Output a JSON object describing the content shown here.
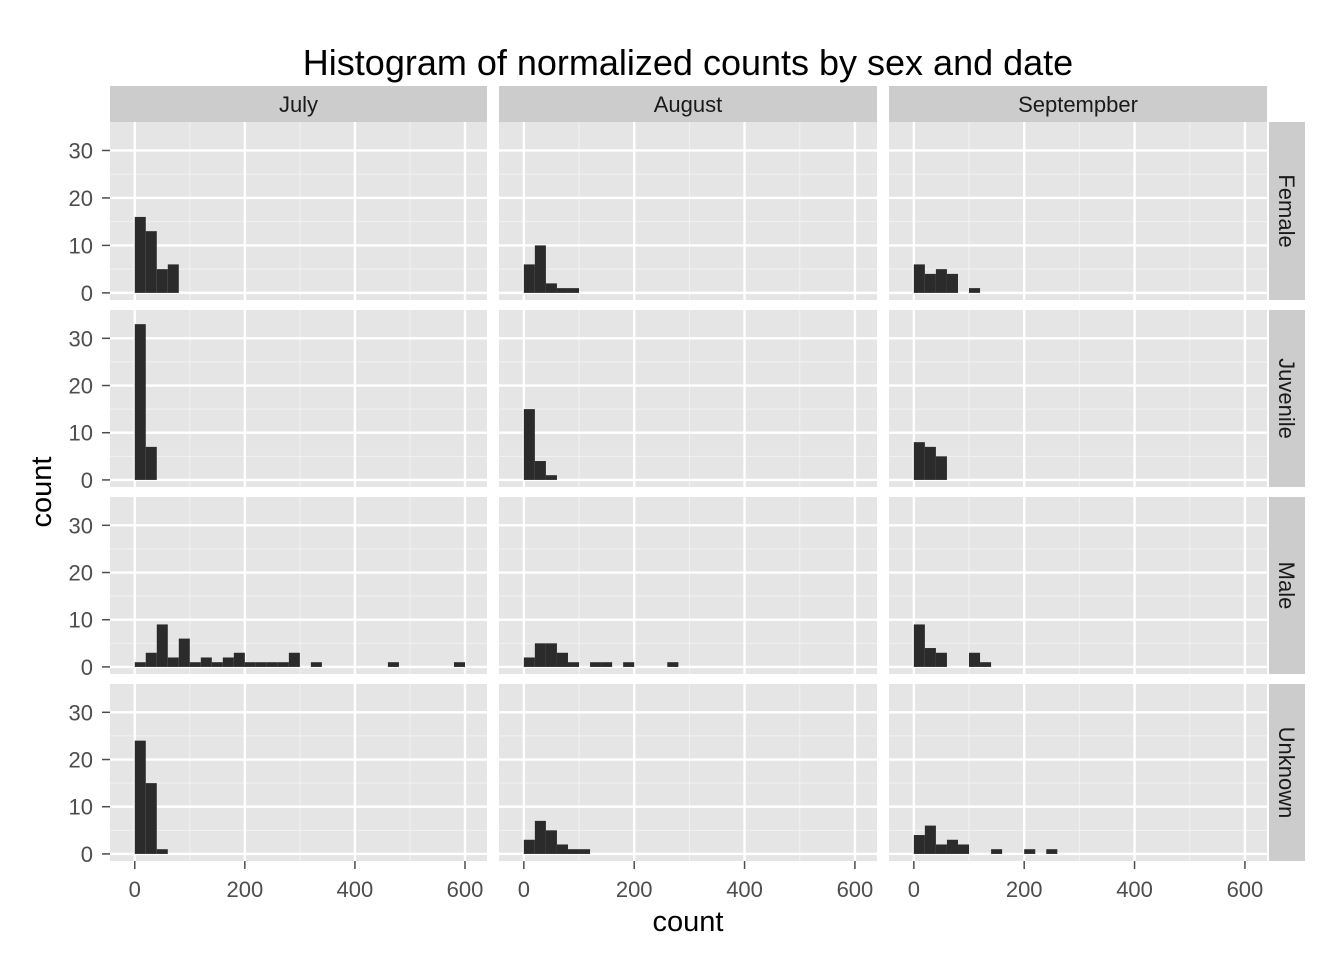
{
  "chart_data": {
    "type": "bar",
    "title": "Histogram of normalized counts by sex and date",
    "xlabel": "count",
    "ylabel": "count",
    "facet_cols": [
      "July",
      "August",
      "Septempber"
    ],
    "facet_rows": [
      "Female",
      "Juvenile",
      "Male",
      "Unknown"
    ],
    "xlim": [
      -45,
      640
    ],
    "ylim": [
      -1.5,
      36
    ],
    "x_ticks": [
      0,
      200,
      400,
      600
    ],
    "y_ticks": [
      0,
      10,
      20,
      30
    ],
    "grid": true,
    "bin_width": 20,
    "bin_starts": [
      0,
      20,
      40,
      60,
      80,
      100,
      120,
      140,
      160,
      180,
      200,
      220,
      240,
      260,
      280,
      300,
      320,
      340,
      360,
      380,
      400,
      420,
      440,
      460,
      480,
      500,
      520,
      540,
      560,
      580,
      600
    ],
    "panels": [
      {
        "row": "Female",
        "col": "July",
        "counts": [
          16,
          13,
          5,
          6
        ]
      },
      {
        "row": "Female",
        "col": "August",
        "counts": [
          6,
          10,
          2,
          1,
          1
        ]
      },
      {
        "row": "Female",
        "col": "Septempber",
        "counts": [
          6,
          4,
          5,
          4,
          0,
          1
        ]
      },
      {
        "row": "Juvenile",
        "col": "July",
        "counts": [
          33,
          7
        ]
      },
      {
        "row": "Juvenile",
        "col": "August",
        "counts": [
          15,
          4,
          1
        ]
      },
      {
        "row": "Juvenile",
        "col": "Septempber",
        "counts": [
          8,
          7,
          5
        ]
      },
      {
        "row": "Male",
        "col": "July",
        "counts": [
          1,
          3,
          9,
          2,
          6,
          1,
          2,
          1,
          2,
          3,
          1,
          1,
          1,
          1,
          3,
          0,
          1,
          0,
          0,
          0,
          0,
          0,
          0,
          1,
          0,
          0,
          0,
          0,
          0,
          1
        ]
      },
      {
        "row": "Male",
        "col": "August",
        "counts": [
          2,
          5,
          5,
          3,
          1,
          0,
          1,
          1,
          0,
          1,
          0,
          0,
          0,
          1
        ]
      },
      {
        "row": "Male",
        "col": "Septempber",
        "counts": [
          9,
          4,
          3,
          0,
          0,
          3,
          1
        ]
      },
      {
        "row": "Unknown",
        "col": "July",
        "counts": [
          24,
          15,
          1
        ]
      },
      {
        "row": "Unknown",
        "col": "August",
        "counts": [
          3,
          7,
          5,
          2,
          1,
          1
        ]
      },
      {
        "row": "Unknown",
        "col": "Septempber",
        "counts": [
          4,
          6,
          2,
          3,
          2,
          0,
          0,
          1,
          0,
          0,
          1,
          0,
          1
        ]
      }
    ],
    "colors": {
      "panel_bg": "#e5e5e5",
      "grid_major": "#ffffff",
      "grid_minor": "#f2f2f2",
      "strip_bg": "#cccccc",
      "bar_fill": "#2b2b2b",
      "tick_color": "#4d4d4d"
    }
  }
}
